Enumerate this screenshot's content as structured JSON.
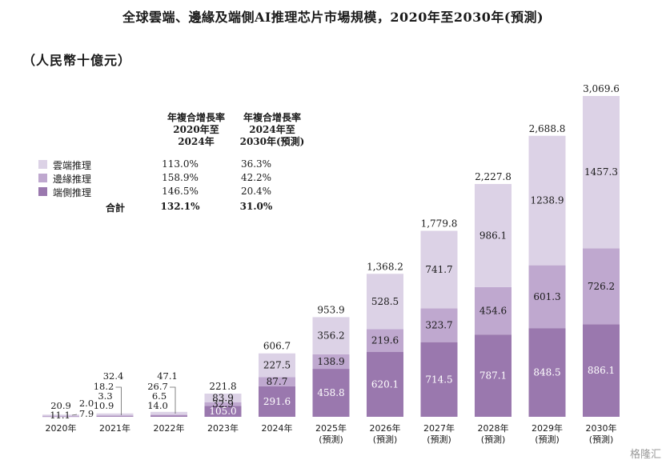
{
  "title": "全球雲端、邊緣及端側AI推理芯片市場規模，2020年至2030年(預測)",
  "subtitle": "（人民幣十億元）",
  "watermark": "格隆汇",
  "colors": {
    "cloud": "#dcd2e6",
    "edge": "#bfa8cf",
    "device": "#9a78ae"
  },
  "cagr_table": {
    "header1": [
      "年複合增長率",
      "2020年至",
      "2024年"
    ],
    "header2": [
      "年複合增長率",
      "2024年至",
      "2030年(預測)"
    ],
    "rows": [
      {
        "label": "雲端推理",
        "c1": "113.0%",
        "c2": "36.3%",
        "color_key": "cloud"
      },
      {
        "label": "邊緣推理",
        "c1": "158.9%",
        "c2": "42.2%",
        "color_key": "edge"
      },
      {
        "label": "端側推理",
        "c1": "146.5%",
        "c2": "20.4%",
        "color_key": "device"
      }
    ],
    "total": {
      "label": "合計",
      "c1": "132.1%",
      "c2": "31.0%"
    }
  },
  "chart_data": {
    "type": "bar",
    "stacked": true,
    "categories": [
      "2020年",
      "2021年",
      "2022年",
      "2023年",
      "2024年",
      "2025年",
      "2026年",
      "2027年",
      "2028年",
      "2029年",
      "2030年"
    ],
    "category_sublabels": [
      "",
      "",
      "",
      "",
      "",
      "(預測)",
      "(預測)",
      "(預測)",
      "(預測)",
      "(預測)",
      "(預測)"
    ],
    "series": [
      {
        "name": "端側推理",
        "values": [
          7.9,
          10.9,
          14.0,
          105.0,
          291.6,
          458.8,
          620.1,
          714.5,
          787.1,
          848.5,
          886.1
        ]
      },
      {
        "name": "邊緣推理",
        "values": [
          2.0,
          3.3,
          6.5,
          32.9,
          87.7,
          138.9,
          219.6,
          323.7,
          454.6,
          601.3,
          726.2
        ]
      },
      {
        "name": "雲端推理",
        "values": [
          11.1,
          18.2,
          26.7,
          83.9,
          227.5,
          356.2,
          528.5,
          741.7,
          986.1,
          1238.9,
          1457.3
        ]
      }
    ],
    "totals": [
      20.9,
      32.4,
      47.1,
      221.8,
      606.7,
      953.9,
      1368.2,
      1779.8,
      2227.8,
      2688.8,
      3069.6
    ],
    "legend_position": "top-left",
    "grid": false,
    "ylim": [
      0,
      3069.6
    ]
  }
}
